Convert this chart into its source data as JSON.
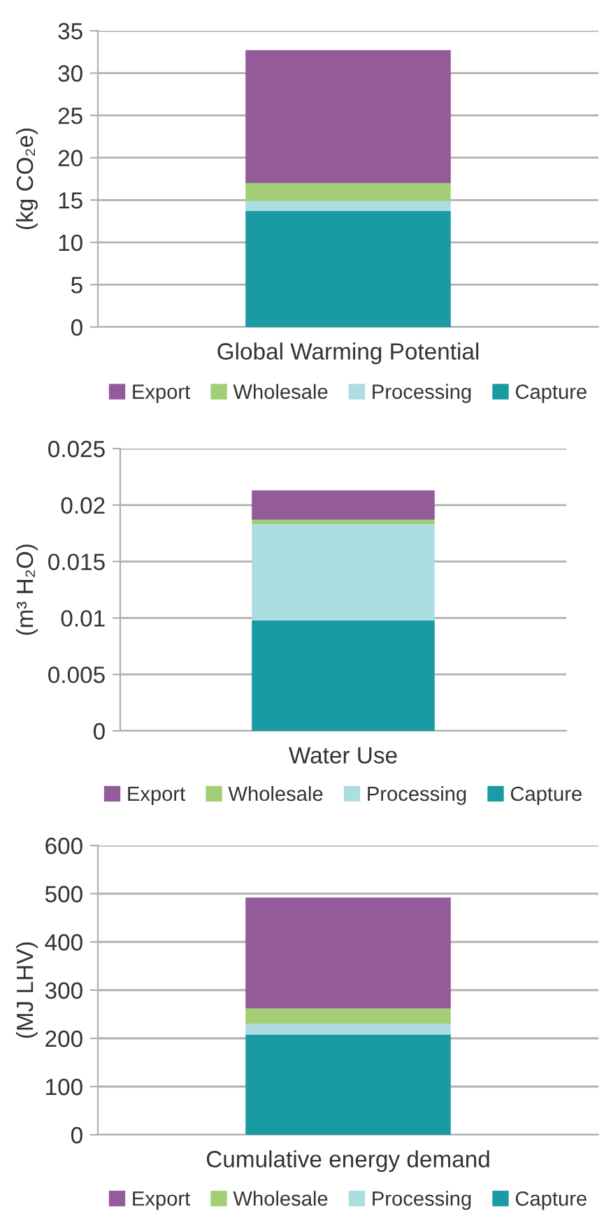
{
  "chart_data": [
    {
      "type": "bar",
      "stacked": true,
      "categories": [
        "Global Warming Potential"
      ],
      "ylabel": "(kg CO₂e)",
      "ylim": [
        0,
        35
      ],
      "yticks": [
        0,
        5,
        10,
        15,
        20,
        25,
        30,
        35
      ],
      "grid": "y",
      "legend": "bottom",
      "series": [
        {
          "name": "Capture",
          "color": "#1a9aa2",
          "values": [
            13.7
          ]
        },
        {
          "name": "Processing",
          "color": "#acdde1",
          "values": [
            1.2
          ]
        },
        {
          "name": "Wholesale",
          "color": "#a2cf75",
          "values": [
            2.1
          ]
        },
        {
          "name": "Export",
          "color": "#935b99",
          "values": [
            15.7
          ]
        }
      ]
    },
    {
      "type": "bar",
      "stacked": true,
      "categories": [
        "Water Use"
      ],
      "ylabel": "(m³ H₂O)",
      "ylim": [
        0,
        0.025
      ],
      "yticks": [
        0,
        0.005,
        0.01,
        0.015,
        0.02,
        0.025
      ],
      "grid": "y",
      "legend": "bottom",
      "series": [
        {
          "name": "Capture",
          "color": "#1a9aa2",
          "values": [
            0.0098
          ]
        },
        {
          "name": "Processing",
          "color": "#acdde1",
          "values": [
            0.0085
          ]
        },
        {
          "name": "Wholesale",
          "color": "#a2cf75",
          "values": [
            0.0004
          ]
        },
        {
          "name": "Export",
          "color": "#935b99",
          "values": [
            0.0026
          ]
        }
      ]
    },
    {
      "type": "bar",
      "stacked": true,
      "categories": [
        "Cumulative energy demand"
      ],
      "ylabel": "(MJ LHV)",
      "ylim": [
        0,
        600
      ],
      "yticks": [
        0,
        100,
        200,
        300,
        400,
        500,
        600
      ],
      "grid": "y",
      "legend": "bottom",
      "series": [
        {
          "name": "Capture",
          "color": "#1a9aa2",
          "values": [
            208
          ]
        },
        {
          "name": "Processing",
          "color": "#acdde1",
          "values": [
            22
          ]
        },
        {
          "name": "Wholesale",
          "color": "#a2cf75",
          "values": [
            32
          ]
        },
        {
          "name": "Export",
          "color": "#935b99",
          "values": [
            230
          ]
        }
      ]
    }
  ]
}
